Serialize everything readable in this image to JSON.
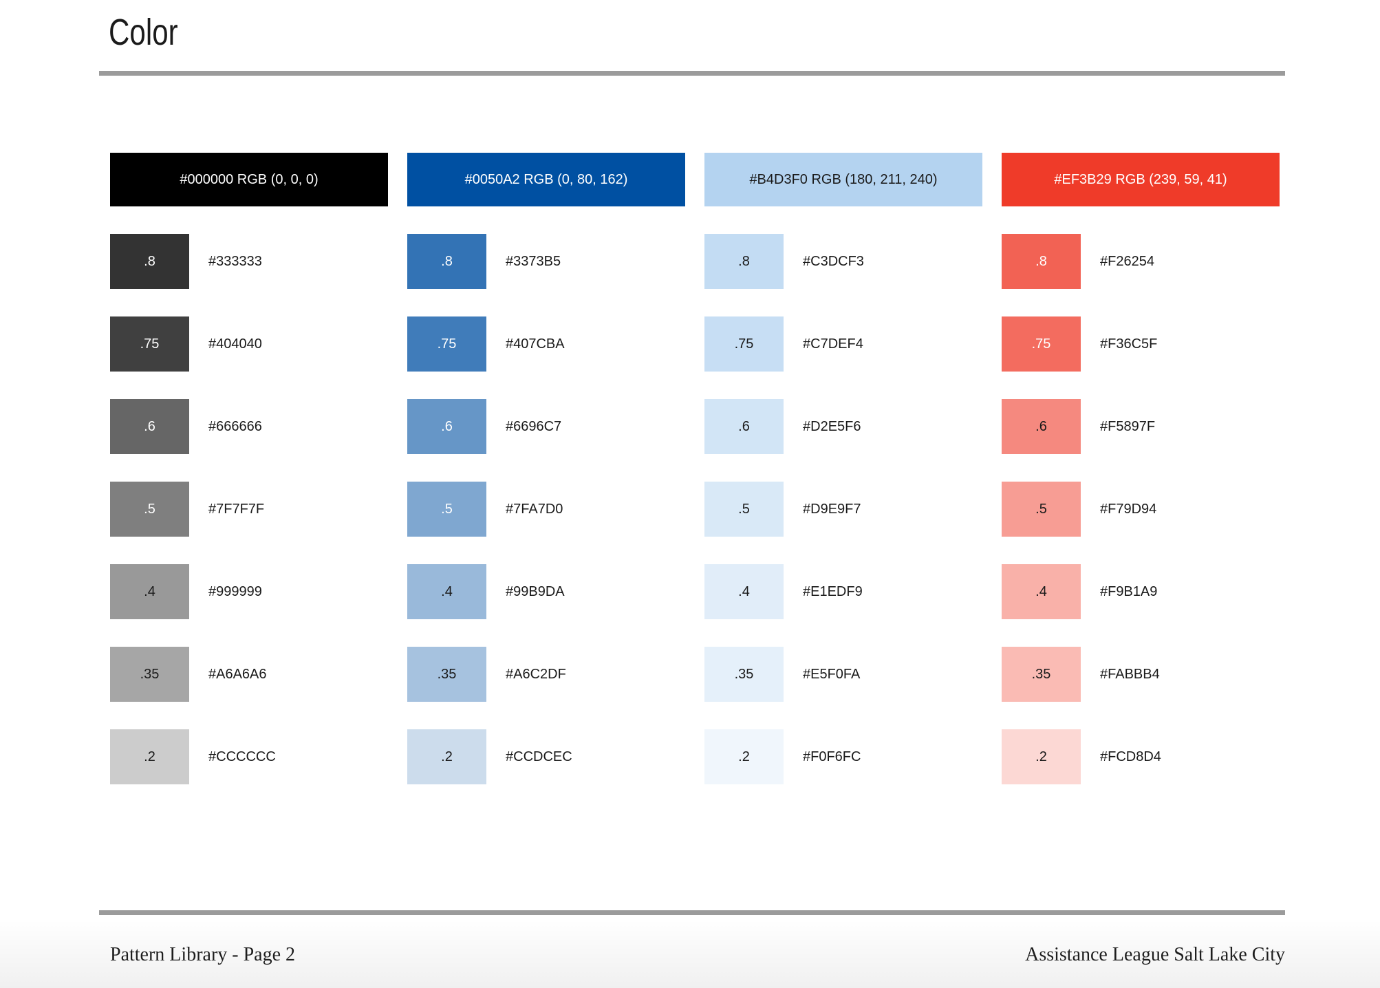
{
  "page": {
    "title": "Color",
    "footer_left": "Pattern Library - Page 2",
    "footer_right": "Assistance League Salt Lake City"
  },
  "palette": {
    "columns": [
      {
        "name": "black",
        "header_label": "#000000 RGB (0, 0, 0)",
        "header_hex": "#000000",
        "header_text": "light",
        "tints": [
          {
            "label": ".8",
            "hex": "#333333",
            "text": "light"
          },
          {
            "label": ".75",
            "hex": "#404040",
            "text": "light"
          },
          {
            "label": ".6",
            "hex": "#666666",
            "text": "light"
          },
          {
            "label": ".5",
            "hex": "#7F7F7F",
            "text": "light"
          },
          {
            "label": ".4",
            "hex": "#999999",
            "text": "dark"
          },
          {
            "label": ".35",
            "hex": "#A6A6A6",
            "text": "dark"
          },
          {
            "label": ".2",
            "hex": "#CCCCCC",
            "text": "dark"
          }
        ]
      },
      {
        "name": "blue",
        "header_label": "#0050A2 RGB (0, 80, 162)",
        "header_hex": "#0050A2",
        "header_text": "light",
        "tints": [
          {
            "label": ".8",
            "hex": "#3373B5",
            "text": "light"
          },
          {
            "label": ".75",
            "hex": "#407CBA",
            "text": "light"
          },
          {
            "label": ".6",
            "hex": "#6696C7",
            "text": "light"
          },
          {
            "label": ".5",
            "hex": "#7FA7D0",
            "text": "light"
          },
          {
            "label": ".4",
            "hex": "#99B9DA",
            "text": "dark"
          },
          {
            "label": ".35",
            "hex": "#A6C2DF",
            "text": "dark"
          },
          {
            "label": ".2",
            "hex": "#CCDCEC",
            "text": "dark"
          }
        ]
      },
      {
        "name": "light-blue",
        "header_label": "#B4D3F0 RGB (180, 211, 240)",
        "header_hex": "#B4D3F0",
        "header_text": "dark",
        "tints": [
          {
            "label": ".8",
            "hex": "#C3DCF3",
            "text": "dark"
          },
          {
            "label": ".75",
            "hex": "#C7DEF4",
            "text": "dark"
          },
          {
            "label": ".6",
            "hex": "#D2E5F6",
            "text": "dark"
          },
          {
            "label": ".5",
            "hex": "#D9E9F7",
            "text": "dark"
          },
          {
            "label": ".4",
            "hex": "#E1EDF9",
            "text": "dark"
          },
          {
            "label": ".35",
            "hex": "#E5F0FA",
            "text": "dark"
          },
          {
            "label": ".2",
            "hex": "#F0F6FC",
            "text": "dark"
          }
        ]
      },
      {
        "name": "red",
        "header_label": "#EF3B29 RGB (239, 59, 41)",
        "header_hex": "#EF3B29",
        "header_text": "light",
        "tints": [
          {
            "label": ".8",
            "hex": "#F26254",
            "text": "light"
          },
          {
            "label": ".75",
            "hex": "#F36C5F",
            "text": "light"
          },
          {
            "label": ".6",
            "hex": "#F5897F",
            "text": "dark"
          },
          {
            "label": ".5",
            "hex": "#F79D94",
            "text": "dark"
          },
          {
            "label": ".4",
            "hex": "#F9B1A9",
            "text": "dark"
          },
          {
            "label": ".35",
            "hex": "#FABBB4",
            "text": "dark"
          },
          {
            "label": ".2",
            "hex": "#FCD8D4",
            "text": "dark"
          }
        ]
      }
    ]
  },
  "colors": {
    "rule": "#9B9B9B",
    "text_dark": "#1A1A1A",
    "text_light": "#FFFFFF",
    "page_background": "#FFFFFF",
    "bottom_shade": "#EFF0F1"
  }
}
